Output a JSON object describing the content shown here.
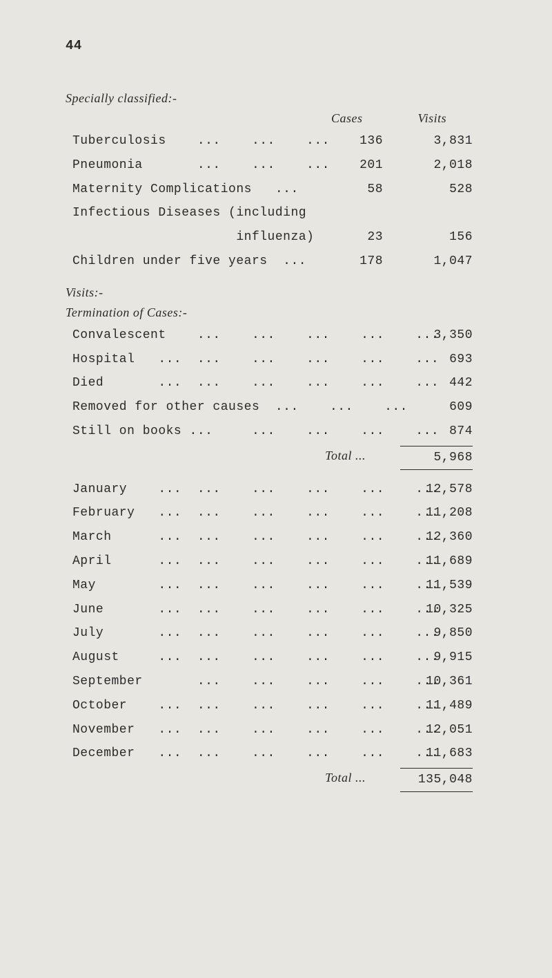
{
  "page_number": "44",
  "section1": {
    "title": "Specially classified:-",
    "headers": {
      "cases": "Cases",
      "visits": "Visits"
    },
    "rows": [
      {
        "label": "Tuberculosis    ...    ...    ...",
        "cases": "136",
        "visits": "3,831"
      },
      {
        "label": "Pneumonia       ...    ...    ...",
        "cases": "201",
        "visits": "2,018"
      },
      {
        "label": "Maternity Complications   ...",
        "cases": "58",
        "visits": "528"
      },
      {
        "label": "Infectious Diseases (including",
        "cases": "",
        "visits": ""
      },
      {
        "label": "                     influenza)",
        "cases": "23",
        "visits": "156"
      },
      {
        "label": "Children under five years  ...",
        "cases": "178",
        "visits": "1,047"
      }
    ]
  },
  "section2": {
    "title": "Visits:-",
    "subtitle": "Termination of Cases:-",
    "rows": [
      {
        "label": "Convalescent    ...    ...    ...    ...    ...",
        "value": "3,350"
      },
      {
        "label": "Hospital   ...  ...    ...    ...    ...    ...",
        "value": "693"
      },
      {
        "label": "Died       ...  ...    ...    ...    ...    ...",
        "value": "442"
      },
      {
        "label": "Removed for other causes  ...    ...    ...",
        "value": "609"
      },
      {
        "label": "Still on books ...     ...    ...    ...    ...",
        "value": "874"
      }
    ],
    "total_label": "Total    ...",
    "total_value": "5,968"
  },
  "section3": {
    "rows": [
      {
        "label": "January    ...  ...    ...    ...    ...    ...",
        "value": "12,578"
      },
      {
        "label": "February   ...  ...    ...    ...    ...    ...",
        "value": "11,208"
      },
      {
        "label": "March      ...  ...    ...    ...    ...    ...",
        "value": "12,360"
      },
      {
        "label": "April      ...  ...    ...    ...    ...    ...",
        "value": "11,689"
      },
      {
        "label": "May        ...  ...    ...    ...    ...    ...",
        "value": "11,539"
      },
      {
        "label": "June       ...  ...    ...    ...    ...    ...",
        "value": "10,325"
      },
      {
        "label": "July       ...  ...    ...    ...    ...    ...",
        "value": "9,850"
      },
      {
        "label": "August     ...  ...    ...    ...    ...    ...",
        "value": "9,915"
      },
      {
        "label": "September       ...    ...    ...    ...    ...",
        "value": "10,361"
      },
      {
        "label": "October    ...  ...    ...    ...    ...    ...",
        "value": "11,489"
      },
      {
        "label": "November   ...  ...    ...    ...    ...    ...",
        "value": "12,051"
      },
      {
        "label": "December   ...  ...    ...    ...    ...    ...",
        "value": "11,683"
      }
    ],
    "total_label": "Total    ...",
    "total_value": "135,048"
  }
}
